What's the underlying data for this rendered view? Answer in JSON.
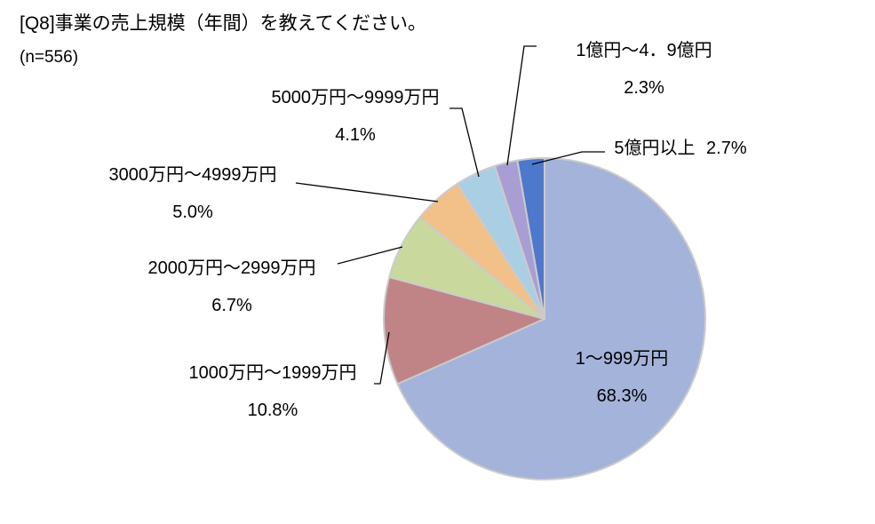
{
  "title": "[Q8]事業の売上規模（年間）を教えてください。",
  "sample_size": "(n=556)",
  "chart_data": {
    "type": "pie",
    "title": "[Q8]事業の売上規模（年間）を教えてください。",
    "subtitle": "(n=556)",
    "direction": "clockwise",
    "start_angle_deg": 0,
    "legend_position": "none",
    "value_unit": "%",
    "slices": [
      {
        "label": "1～999万円",
        "value": 68.3,
        "display": "68.3%",
        "color": "#a4b3d9",
        "label_placement": "inside"
      },
      {
        "label": "1000万円～1999万円",
        "value": 10.8,
        "display": "10.8%",
        "color": "#c08487",
        "label_placement": "outside"
      },
      {
        "label": "2000万円～2999万円",
        "value": 6.7,
        "display": "6.7%",
        "color": "#c9d89d",
        "label_placement": "outside"
      },
      {
        "label": "3000万円～4999万円",
        "value": 5.0,
        "display": "5.0%",
        "color": "#f2c189",
        "label_placement": "outside"
      },
      {
        "label": "5000万円～9999万円",
        "value": 4.1,
        "display": "4.1%",
        "color": "#aacee3",
        "label_placement": "outside"
      },
      {
        "label": "1億円～4．9億円",
        "value": 2.3,
        "display": "2.3%",
        "color": "#a99ed3",
        "label_placement": "outside"
      },
      {
        "label": "5億円以上",
        "value": 2.7,
        "display": "2.7%",
        "color": "#4e78cb",
        "label_placement": "outside"
      }
    ],
    "slice_border_color": "#cbcbcb",
    "leader_line_color": "#000000"
  }
}
